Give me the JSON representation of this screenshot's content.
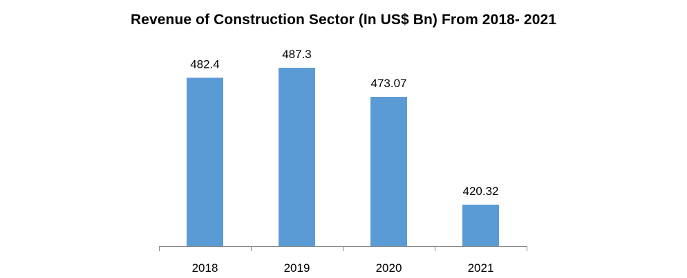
{
  "chart_data": {
    "type": "bar",
    "title": "Revenue of Construction  Sector (In US$ Bn) From 2018- 2021",
    "categories": [
      "2018",
      "2019",
      "2020",
      "2021"
    ],
    "values": [
      482.4,
      487.3,
      473.07,
      420.32
    ],
    "value_labels": [
      "482.4",
      "487.3",
      "473.07",
      "420.32"
    ],
    "xlabel": "",
    "ylabel": "",
    "ylim": [
      400,
      490
    ],
    "grid": false,
    "legend": "none",
    "bar_color": "#5b9bd5",
    "axis_color": "#868686"
  }
}
